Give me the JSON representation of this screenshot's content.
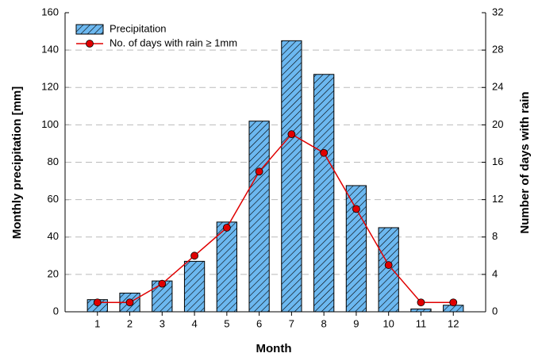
{
  "chart_data": {
    "type": "bar",
    "xlabel": "Month",
    "ylabel": "Monthly precipitation [mm]",
    "y2label": "Number of days with rain",
    "x": [
      1,
      2,
      3,
      4,
      5,
      6,
      7,
      8,
      9,
      10,
      11,
      12
    ],
    "xlim": [
      0,
      13
    ],
    "xticks": [
      1,
      2,
      3,
      4,
      5,
      6,
      7,
      8,
      9,
      10,
      11,
      12
    ],
    "ylim": [
      0,
      160
    ],
    "yticks": [
      0,
      20,
      40,
      60,
      80,
      100,
      120,
      140,
      160
    ],
    "y2lim": [
      0,
      32
    ],
    "y2ticks": [
      0,
      4,
      8,
      12,
      16,
      20,
      24,
      28,
      32
    ],
    "grid": true,
    "legend": "upper left",
    "series": [
      {
        "name": "Precipitation",
        "type": "bar",
        "color": "#6cb8f0",
        "values": [
          6.5,
          10,
          16.5,
          27,
          48,
          102,
          145,
          127,
          67.5,
          45,
          1.5,
          3.5
        ]
      },
      {
        "name": "No. of days with rain ≥ 1mm",
        "type": "line",
        "color": "#e00000",
        "axis": "y2",
        "values": [
          1,
          1,
          3,
          6,
          9,
          15,
          19,
          17,
          11,
          5,
          1,
          1
        ]
      }
    ]
  }
}
